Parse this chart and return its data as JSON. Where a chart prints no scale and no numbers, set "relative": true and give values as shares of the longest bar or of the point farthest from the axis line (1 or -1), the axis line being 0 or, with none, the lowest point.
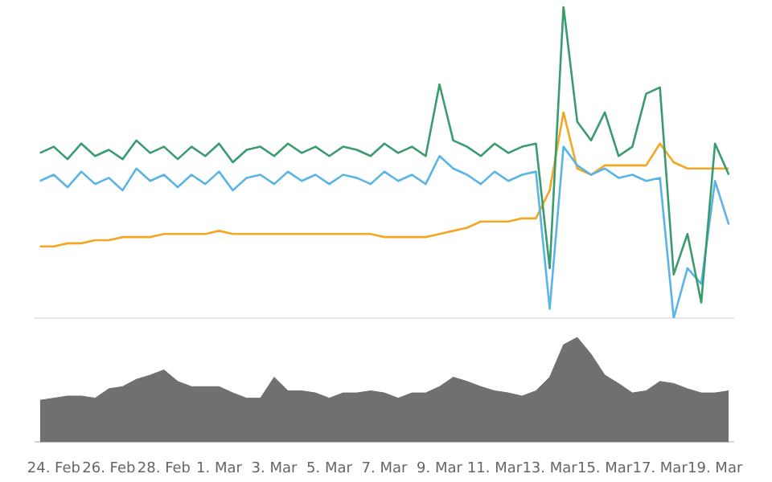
{
  "chart_data": [
    {
      "type": "line",
      "relative": true,
      "tick_labels": false,
      "legend": false,
      "marker": "none",
      "xlim": [
        "--02-23T08:00",
        "--03-19T16:00"
      ],
      "xticks": [
        {
          "value": "--02-24",
          "label": "24. Feb"
        },
        {
          "value": "--02-26",
          "label": "26. Feb"
        },
        {
          "value": "--02-28",
          "label": "28. Feb"
        },
        {
          "value": "--03-01",
          "label": "1. Mar"
        },
        {
          "value": "--03-03",
          "label": "3. Mar"
        },
        {
          "value": "--03-05",
          "label": "5. Mar"
        },
        {
          "value": "--03-07",
          "label": "7. Mar"
        },
        {
          "value": "--03-09",
          "label": "9. Mar"
        },
        {
          "value": "--03-11",
          "label": "11. Mar"
        },
        {
          "value": "--03-13",
          "label": "13. Mar"
        },
        {
          "value": "--03-15",
          "label": "15. Mar"
        },
        {
          "value": "--03-17",
          "label": "17. Mar"
        },
        {
          "value": "--03-19",
          "label": "19. Mar"
        }
      ],
      "x": [
        "--02-23T12:00",
        "--02-24T00:00",
        "--02-24T12:00",
        "--02-25T00:00",
        "--02-25T12:00",
        "--02-26T00:00",
        "--02-26T12:00",
        "--02-27T00:00",
        "--02-27T12:00",
        "--02-28T00:00",
        "--02-28T12:00",
        "--02-29T00:00",
        "--02-29T12:00",
        "--03-01T00:00",
        "--03-01T12:00",
        "--03-02T00:00",
        "--03-02T12:00",
        "--03-03T00:00",
        "--03-03T12:00",
        "--03-04T00:00",
        "--03-04T12:00",
        "--03-05T00:00",
        "--03-05T12:00",
        "--03-06T00:00",
        "--03-06T12:00",
        "--03-07T00:00",
        "--03-07T12:00",
        "--03-08T00:00",
        "--03-08T12:00",
        "--03-09T00:00",
        "--03-09T12:00",
        "--03-10T00:00",
        "--03-10T12:00",
        "--03-11T00:00",
        "--03-11T12:00",
        "--03-12T00:00",
        "--03-12T12:00",
        "--03-13T00:00",
        "--03-13T12:00",
        "--03-14T00:00",
        "--03-14T12:00",
        "--03-15T00:00",
        "--03-15T12:00",
        "--03-16T00:00",
        "--03-16T12:00",
        "--03-17T00:00",
        "--03-17T12:00",
        "--03-18T00:00",
        "--03-18T12:00",
        "--03-19T00:00",
        "--03-19T12:00"
      ],
      "series": [
        {
          "color": "#3a9b6e",
          "values": [
            0.53,
            0.55,
            0.51,
            0.56,
            0.52,
            0.54,
            0.51,
            0.57,
            0.53,
            0.55,
            0.51,
            0.55,
            0.52,
            0.56,
            0.5,
            0.54,
            0.55,
            0.52,
            0.56,
            0.53,
            0.55,
            0.52,
            0.55,
            0.54,
            0.52,
            0.56,
            0.53,
            0.55,
            0.52,
            0.75,
            0.57,
            0.55,
            0.52,
            0.56,
            0.53,
            0.55,
            0.56,
            0.16,
            1.0,
            0.63,
            0.57,
            0.66,
            0.52,
            0.55,
            0.72,
            0.74,
            0.14,
            0.27,
            0.05,
            0.56,
            0.46
          ]
        },
        {
          "color": "#5ab4e6",
          "values": [
            0.44,
            0.46,
            0.42,
            0.47,
            0.43,
            0.45,
            0.41,
            0.48,
            0.44,
            0.46,
            0.42,
            0.46,
            0.43,
            0.47,
            0.41,
            0.45,
            0.46,
            0.43,
            0.47,
            0.44,
            0.46,
            0.43,
            0.46,
            0.45,
            0.43,
            0.47,
            0.44,
            0.46,
            0.43,
            0.52,
            0.48,
            0.46,
            0.43,
            0.47,
            0.44,
            0.46,
            0.47,
            0.03,
            0.55,
            0.49,
            0.46,
            0.48,
            0.45,
            0.46,
            0.44,
            0.45,
            0.0,
            0.16,
            0.11,
            0.44,
            0.3
          ]
        },
        {
          "color": "#f5a623",
          "values": [
            0.23,
            0.23,
            0.24,
            0.24,
            0.25,
            0.25,
            0.26,
            0.26,
            0.26,
            0.27,
            0.27,
            0.27,
            0.27,
            0.28,
            0.27,
            0.27,
            0.27,
            0.27,
            0.27,
            0.27,
            0.27,
            0.27,
            0.27,
            0.27,
            0.27,
            0.26,
            0.26,
            0.26,
            0.26,
            0.27,
            0.28,
            0.29,
            0.31,
            0.31,
            0.31,
            0.32,
            0.32,
            0.41,
            0.66,
            0.48,
            0.46,
            0.49,
            0.49,
            0.49,
            0.49,
            0.56,
            0.5,
            0.48,
            0.48,
            0.48,
            0.48
          ]
        }
      ]
    },
    {
      "type": "area",
      "relative": true,
      "tick_labels": "x",
      "legend": false,
      "xlim": [
        "--02-23T08:00",
        "--03-19T16:00"
      ],
      "xticks": [
        {
          "value": "--02-24",
          "label": "24. Feb"
        },
        {
          "value": "--02-26",
          "label": "26. Feb"
        },
        {
          "value": "--02-28",
          "label": "28. Feb"
        },
        {
          "value": "--03-01",
          "label": "1. Mar"
        },
        {
          "value": "--03-03",
          "label": "3. Mar"
        },
        {
          "value": "--03-05",
          "label": "5. Mar"
        },
        {
          "value": "--03-07",
          "label": "7. Mar"
        },
        {
          "value": "--03-09",
          "label": "9. Mar"
        },
        {
          "value": "--03-11",
          "label": "11. Mar"
        },
        {
          "value": "--03-13",
          "label": "13. Mar"
        },
        {
          "value": "--03-15",
          "label": "15. Mar"
        },
        {
          "value": "--03-17",
          "label": "17. Mar"
        },
        {
          "value": "--03-19",
          "label": "19. Mar"
        }
      ],
      "x": [
        "--02-23T12:00",
        "--02-24T00:00",
        "--02-24T12:00",
        "--02-25T00:00",
        "--02-25T12:00",
        "--02-26T00:00",
        "--02-26T12:00",
        "--02-27T00:00",
        "--02-27T12:00",
        "--02-28T00:00",
        "--02-28T12:00",
        "--02-29T00:00",
        "--02-29T12:00",
        "--03-01T00:00",
        "--03-01T12:00",
        "--03-02T00:00",
        "--03-02T12:00",
        "--03-03T00:00",
        "--03-03T12:00",
        "--03-04T00:00",
        "--03-04T12:00",
        "--03-05T00:00",
        "--03-05T12:00",
        "--03-06T00:00",
        "--03-06T12:00",
        "--03-07T00:00",
        "--03-07T12:00",
        "--03-08T00:00",
        "--03-08T12:00",
        "--03-09T00:00",
        "--03-09T12:00",
        "--03-10T00:00",
        "--03-10T12:00",
        "--03-11T00:00",
        "--03-11T12:00",
        "--03-12T00:00",
        "--03-12T12:00",
        "--03-13T00:00",
        "--03-13T12:00",
        "--03-14T00:00",
        "--03-14T12:00",
        "--03-15T00:00",
        "--03-15T12:00",
        "--03-16T00:00",
        "--03-16T12:00",
        "--03-17T00:00",
        "--03-17T12:00",
        "--03-18T00:00",
        "--03-18T12:00",
        "--03-19T00:00",
        "--03-19T12:00"
      ],
      "series": [
        {
          "color": "#707070",
          "values": [
            0.4,
            0.42,
            0.44,
            0.44,
            0.42,
            0.51,
            0.53,
            0.6,
            0.64,
            0.69,
            0.58,
            0.53,
            0.53,
            0.53,
            0.47,
            0.42,
            0.42,
            0.62,
            0.49,
            0.49,
            0.47,
            0.42,
            0.47,
            0.47,
            0.49,
            0.47,
            0.42,
            0.47,
            0.47,
            0.53,
            0.62,
            0.58,
            0.53,
            0.49,
            0.47,
            0.44,
            0.49,
            0.62,
            0.93,
            1.0,
            0.84,
            0.64,
            0.56,
            0.47,
            0.49,
            0.58,
            0.56,
            0.51,
            0.47,
            0.47,
            0.49
          ]
        }
      ]
    }
  ]
}
